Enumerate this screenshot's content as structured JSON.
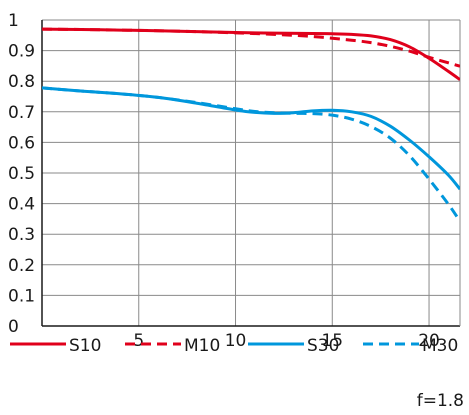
{
  "chart_data": {
    "type": "line",
    "title": "",
    "xlabel": "",
    "ylabel": "",
    "xlim": [
      0,
      21.6
    ],
    "ylim": [
      0,
      1
    ],
    "x_ticks": [
      5,
      10,
      15,
      20
    ],
    "y_ticks": [
      0,
      0.1,
      0.2,
      0.3,
      0.4,
      0.5,
      0.6,
      0.7,
      0.8,
      0.9,
      1
    ],
    "y_tick_labels": [
      "0",
      "0.1",
      "0.2",
      "0.3",
      "0.4",
      "0.5",
      "0.6",
      "0.7",
      "0.8",
      "0.9",
      "1"
    ],
    "x_tick_labels": [
      "5",
      "10",
      "15",
      "20"
    ],
    "grid": true,
    "legend_position": "bottom",
    "series": [
      {
        "name": "S10",
        "color": "#e0001b",
        "dash": false,
        "points": [
          [
            0,
            0.97
          ],
          [
            2,
            0.969
          ],
          [
            4,
            0.967
          ],
          [
            6,
            0.965
          ],
          [
            8,
            0.962
          ],
          [
            10,
            0.959
          ],
          [
            12,
            0.957
          ],
          [
            14,
            0.956
          ],
          [
            15,
            0.955
          ],
          [
            16,
            0.953
          ],
          [
            17,
            0.948
          ],
          [
            18,
            0.936
          ],
          [
            19,
            0.912
          ],
          [
            20,
            0.875
          ],
          [
            21,
            0.832
          ],
          [
            21.6,
            0.805
          ]
        ]
      },
      {
        "name": "M10",
        "color": "#e0001b",
        "dash": true,
        "points": [
          [
            0,
            0.97
          ],
          [
            2,
            0.969
          ],
          [
            4,
            0.967
          ],
          [
            6,
            0.965
          ],
          [
            8,
            0.962
          ],
          [
            10,
            0.958
          ],
          [
            12,
            0.953
          ],
          [
            14,
            0.946
          ],
          [
            16,
            0.934
          ],
          [
            17,
            0.926
          ],
          [
            18,
            0.914
          ],
          [
            19,
            0.898
          ],
          [
            20,
            0.878
          ],
          [
            21,
            0.86
          ],
          [
            21.6,
            0.849
          ]
        ]
      },
      {
        "name": "S30",
        "color": "#0097dc",
        "dash": false,
        "points": [
          [
            0,
            0.778
          ],
          [
            2,
            0.768
          ],
          [
            4,
            0.759
          ],
          [
            6,
            0.747
          ],
          [
            8,
            0.728
          ],
          [
            10,
            0.706
          ],
          [
            11,
            0.698
          ],
          [
            12,
            0.695
          ],
          [
            13,
            0.697
          ],
          [
            14,
            0.703
          ],
          [
            15,
            0.705
          ],
          [
            16,
            0.7
          ],
          [
            17,
            0.685
          ],
          [
            18,
            0.653
          ],
          [
            19,
            0.607
          ],
          [
            20,
            0.553
          ],
          [
            21,
            0.493
          ],
          [
            21.6,
            0.447
          ]
        ]
      },
      {
        "name": "M30",
        "color": "#0097dc",
        "dash": true,
        "points": [
          [
            0,
            0.778
          ],
          [
            2,
            0.768
          ],
          [
            4,
            0.759
          ],
          [
            6,
            0.747
          ],
          [
            8,
            0.73
          ],
          [
            10,
            0.71
          ],
          [
            11,
            0.701
          ],
          [
            12,
            0.697
          ],
          [
            13,
            0.695
          ],
          [
            14,
            0.694
          ],
          [
            15,
            0.689
          ],
          [
            16,
            0.676
          ],
          [
            17,
            0.652
          ],
          [
            18,
            0.614
          ],
          [
            19,
            0.556
          ],
          [
            20,
            0.48
          ],
          [
            21,
            0.398
          ],
          [
            21.6,
            0.342
          ]
        ]
      }
    ],
    "footnote": "f=1.8"
  }
}
